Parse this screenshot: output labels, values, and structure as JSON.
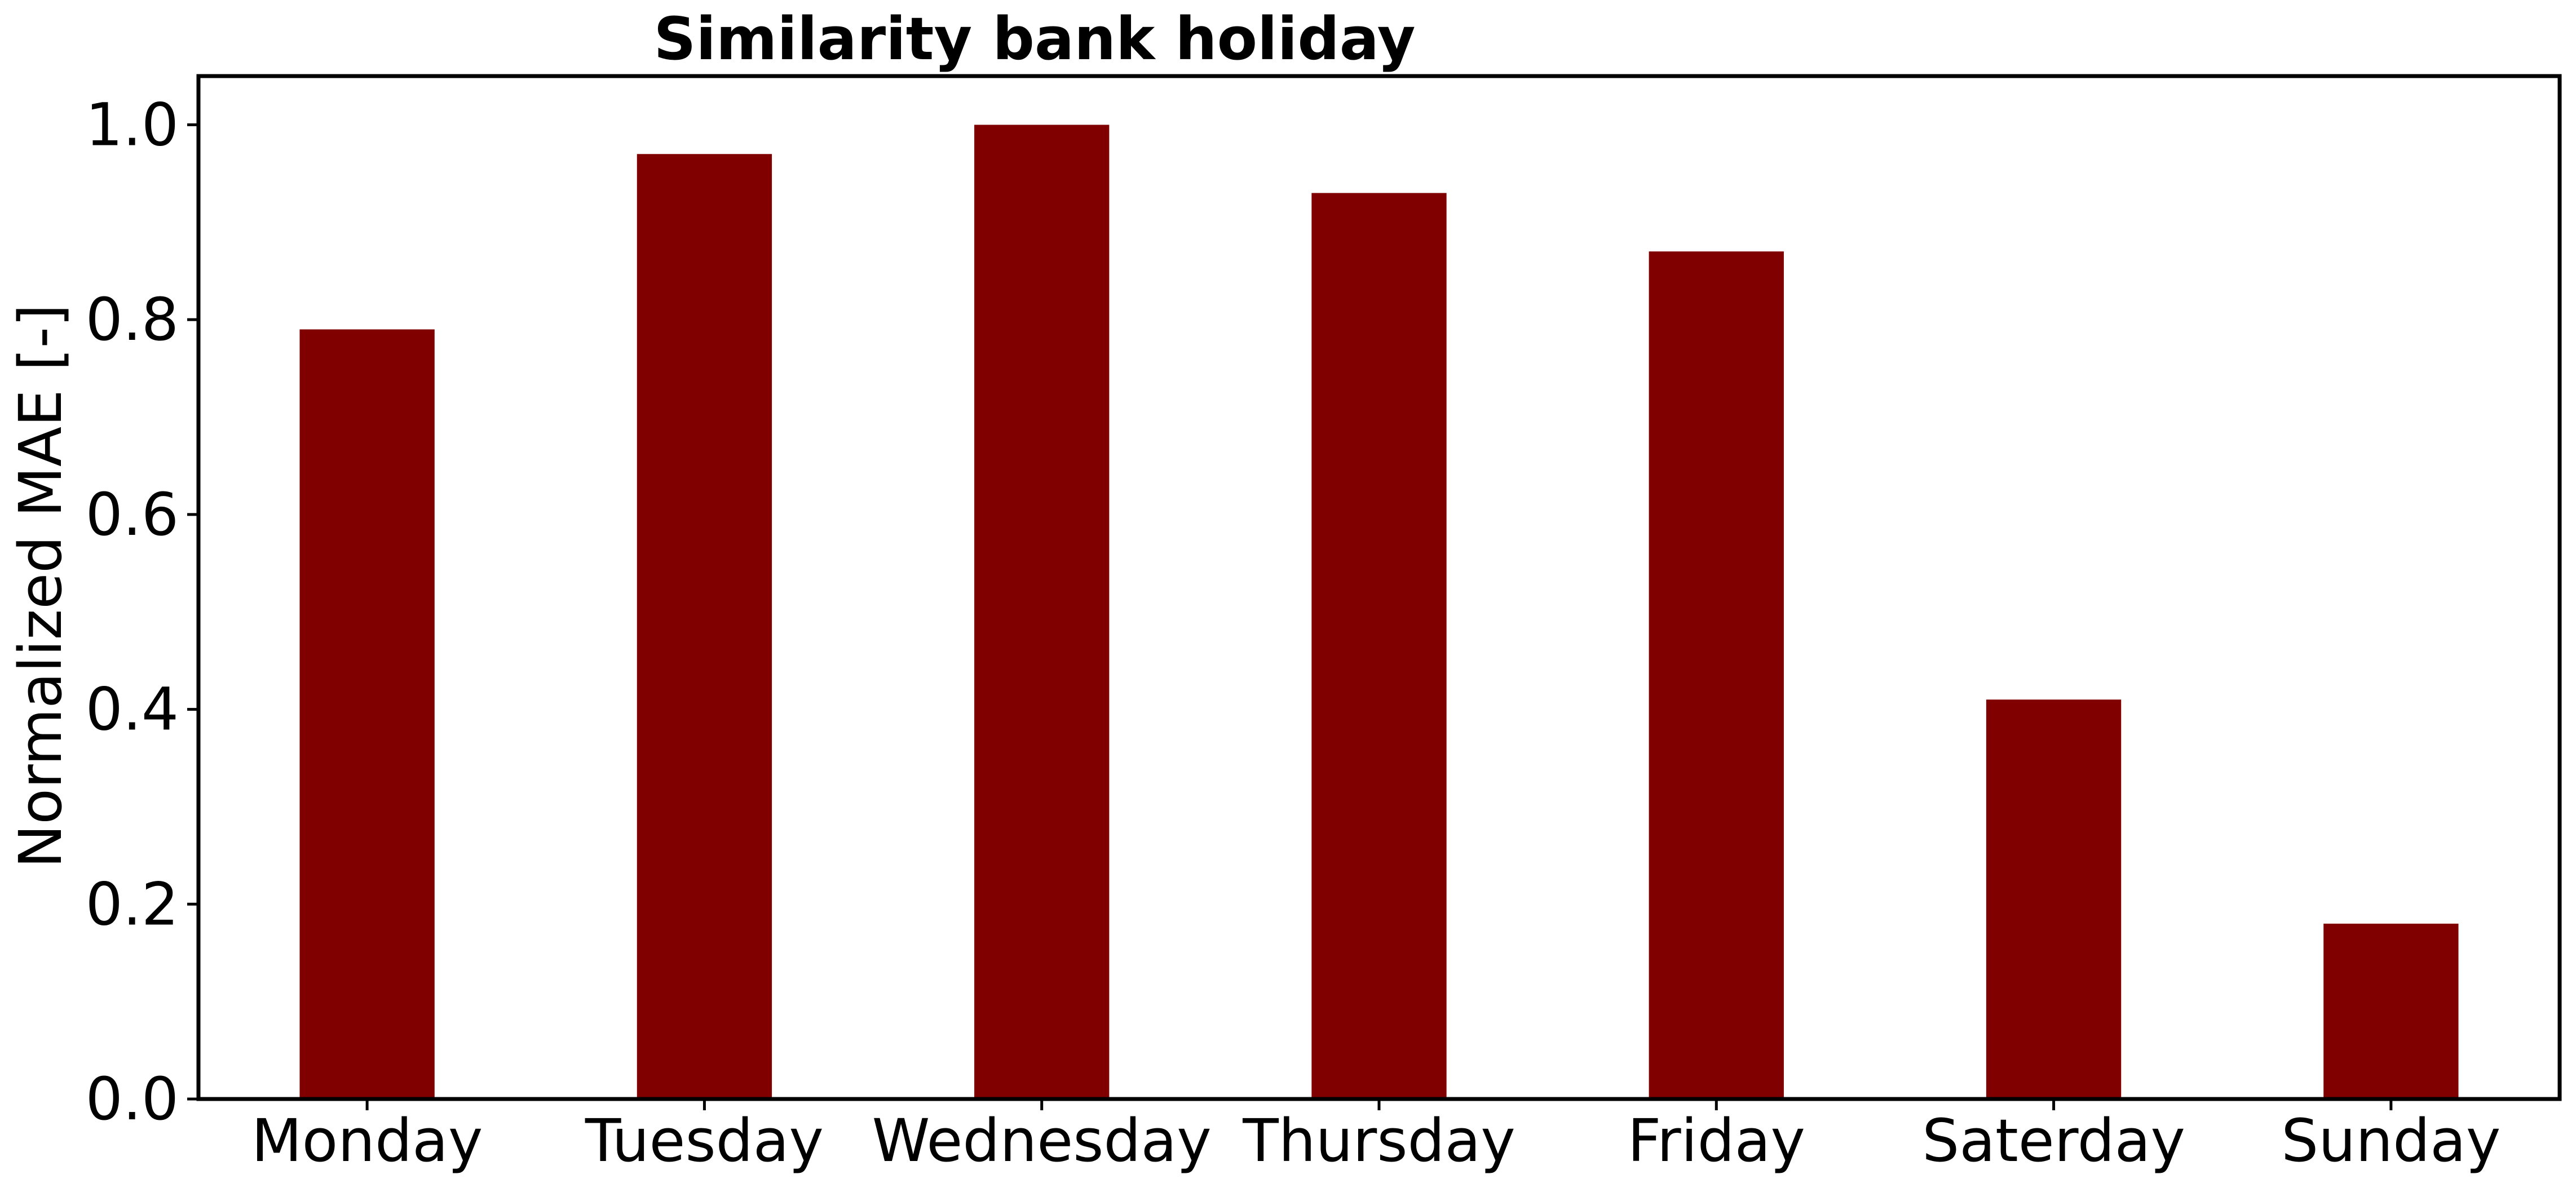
{
  "chart_data": {
    "type": "bar",
    "title": "Similarity bank holiday",
    "xlabel": "",
    "ylabel": "Normalized MAE [-]",
    "categories": [
      "Monday",
      "Tuesday",
      "Wednesday",
      "Thursday",
      "Friday",
      "Saterday",
      "Sunday"
    ],
    "values": [
      0.79,
      0.97,
      1.0,
      0.93,
      0.87,
      0.41,
      0.18
    ],
    "ylim": [
      0,
      1.05
    ],
    "yticks": [
      "0.0",
      "0.2",
      "0.4",
      "0.6",
      "0.8",
      "1.0"
    ],
    "bar_color": "#800000",
    "grid": false,
    "legend": "none"
  }
}
